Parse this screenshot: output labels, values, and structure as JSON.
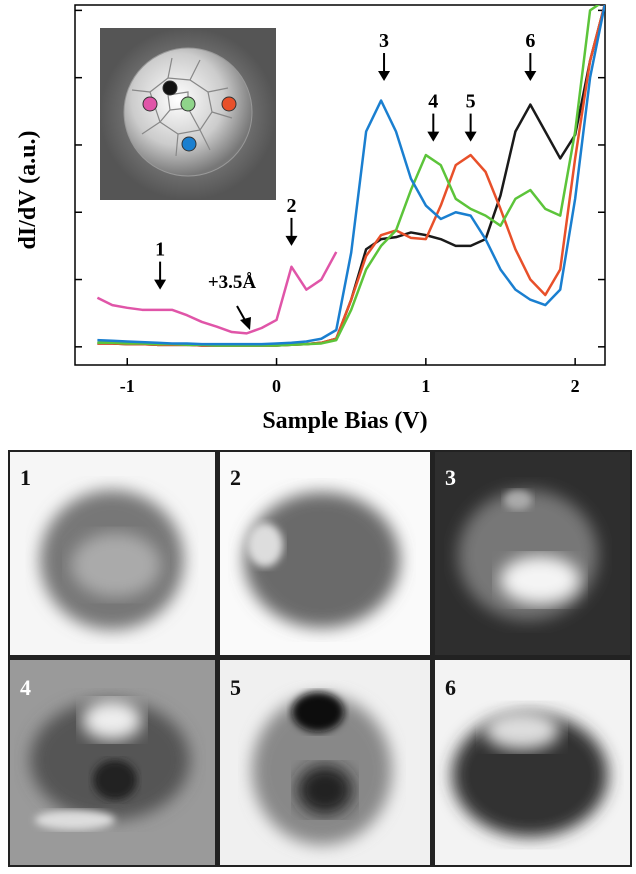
{
  "chart_data": {
    "type": "line",
    "xlabel": "Sample Bias (V)",
    "ylabel": "dI/dV (a.u.)",
    "xlim": [
      -1.35,
      2.2
    ],
    "ylim": [
      -0.27,
      5.08
    ],
    "xticks": [
      -1,
      0,
      1,
      2
    ],
    "yticks": [
      0,
      1,
      2,
      3,
      4,
      5
    ],
    "x": [
      -1.2,
      -1.1,
      -1.0,
      -0.9,
      -0.8,
      -0.7,
      -0.6,
      -0.5,
      -0.4,
      -0.3,
      -0.2,
      -0.1,
      0.0,
      0.1,
      0.2,
      0.3,
      0.4,
      0.5,
      0.6,
      0.7,
      0.8,
      0.9,
      1.0,
      1.1,
      1.2,
      1.3,
      1.4,
      1.5,
      1.6,
      1.7,
      1.8,
      1.9,
      2.0,
      2.1,
      2.2
    ],
    "series": [
      {
        "color": "#1a1a1a",
        "values": [
          0.05,
          0.05,
          0.04,
          0.04,
          0.03,
          0.03,
          0.03,
          0.02,
          0.02,
          0.02,
          0.02,
          0.02,
          0.02,
          0.03,
          0.04,
          0.06,
          0.12,
          0.7,
          1.45,
          1.6,
          1.63,
          1.7,
          1.66,
          1.6,
          1.5,
          1.5,
          1.6,
          2.25,
          3.2,
          3.6,
          3.2,
          2.8,
          3.15,
          4.25,
          5.1
        ]
      },
      {
        "color": "#e8502a",
        "values": [
          0.05,
          0.05,
          0.04,
          0.04,
          0.03,
          0.03,
          0.03,
          0.02,
          0.02,
          0.02,
          0.02,
          0.02,
          0.02,
          0.03,
          0.04,
          0.06,
          0.12,
          0.7,
          1.35,
          1.66,
          1.73,
          1.62,
          1.6,
          2.1,
          2.7,
          2.85,
          2.6,
          2.05,
          1.45,
          1.0,
          0.77,
          1.15,
          2.8,
          4.25,
          5.1
        ]
      },
      {
        "color": "#5cc43a",
        "values": [
          0.06,
          0.06,
          0.05,
          0.05,
          0.04,
          0.04,
          0.03,
          0.03,
          0.02,
          0.02,
          0.02,
          0.02,
          0.02,
          0.03,
          0.04,
          0.05,
          0.1,
          0.55,
          1.15,
          1.5,
          1.73,
          2.33,
          2.85,
          2.7,
          2.2,
          2.05,
          1.95,
          1.8,
          2.2,
          2.33,
          2.05,
          1.95,
          3.2,
          5.0,
          5.15
        ]
      },
      {
        "color": "#1a7fd0",
        "values": [
          0.1,
          0.09,
          0.08,
          0.07,
          0.06,
          0.05,
          0.05,
          0.04,
          0.04,
          0.04,
          0.04,
          0.04,
          0.05,
          0.06,
          0.08,
          0.12,
          0.25,
          1.4,
          3.2,
          3.66,
          3.2,
          2.5,
          2.1,
          1.9,
          2.0,
          1.95,
          1.6,
          1.15,
          0.85,
          0.7,
          0.62,
          0.85,
          2.2,
          4.0,
          5.1
        ]
      },
      {
        "color": "#e055a8",
        "values": [
          0.73,
          0.62,
          0.58,
          0.55,
          0.55,
          0.55,
          0.47,
          0.37,
          0.3,
          0.22,
          0.2,
          0.28,
          0.4,
          1.19,
          0.85,
          1.0,
          1.41,
          null,
          null,
          null,
          null,
          null,
          null,
          null,
          null,
          null,
          null,
          null,
          null,
          null,
          null,
          null,
          null,
          null,
          null
        ]
      }
    ],
    "annotations": [
      {
        "label": "1",
        "x": -0.78,
        "y": 0.85
      },
      {
        "label": "2",
        "x": 0.1,
        "y": 1.5
      },
      {
        "label": "3",
        "x": 0.72,
        "y": 3.95
      },
      {
        "label": "4",
        "x": 1.05,
        "y": 3.05
      },
      {
        "label": "5",
        "x": 1.3,
        "y": 3.05
      },
      {
        "label": "6",
        "x": 1.7,
        "y": 3.95
      }
    ],
    "offset_label": "+3.5Å"
  },
  "panels": [
    "1",
    "2",
    "3",
    "4",
    "5",
    "6"
  ]
}
